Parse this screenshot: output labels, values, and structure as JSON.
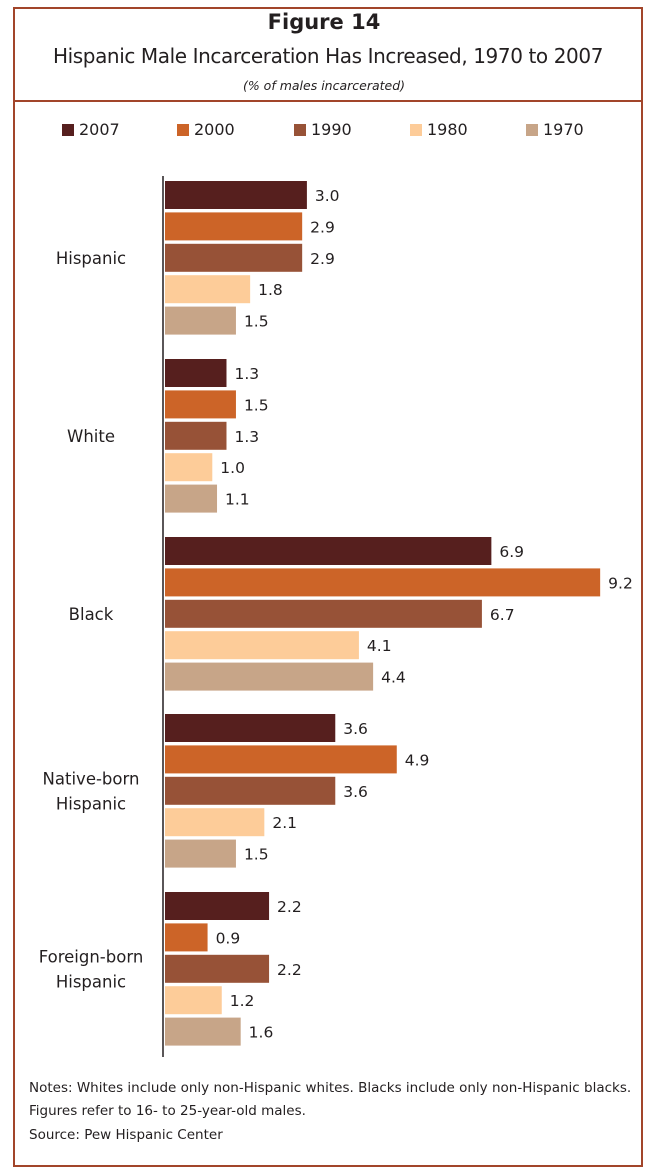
{
  "header": {
    "figure_label": "Figure 14",
    "title": "Hispanic Male Incarceration Has Increased, 1970 to 2007",
    "subtitle": "(% of males incarcerated)"
  },
  "colors": {
    "border": "#a2452a",
    "2007": "#561f1e",
    "2000": "#cc6428",
    "1990": "#975237",
    "1980": "#fdcc99",
    "1970": "#c7a588"
  },
  "chart_data": {
    "type": "bar",
    "orientation": "horizontal",
    "title": "Hispanic Male Incarceration Has Increased, 1970 to 2007",
    "subtitle": "(% of males incarcerated)",
    "categories": [
      [
        "Hispanic"
      ],
      [
        "White"
      ],
      [
        "Black"
      ],
      [
        "Native-born",
        "Hispanic"
      ],
      [
        "Foreign-born",
        "Hispanic"
      ]
    ],
    "series": [
      {
        "name": "2007",
        "color": "#561f1e",
        "values": [
          3.0,
          1.3,
          6.9,
          3.6,
          2.2
        ]
      },
      {
        "name": "2000",
        "color": "#cc6428",
        "values": [
          2.9,
          1.5,
          9.2,
          4.9,
          0.9
        ]
      },
      {
        "name": "1990",
        "color": "#975237",
        "values": [
          2.9,
          1.3,
          6.7,
          3.6,
          2.2
        ]
      },
      {
        "name": "1980",
        "color": "#fdcc99",
        "values": [
          1.8,
          1.0,
          4.1,
          2.1,
          1.2
        ]
      },
      {
        "name": "1970",
        "color": "#c7a588",
        "values": [
          1.5,
          1.1,
          4.4,
          1.5,
          1.6
        ]
      }
    ],
    "xlim": [
      0,
      9.2
    ],
    "grid": false,
    "legend_position": "top"
  },
  "footer": {
    "notes": "Notes: Whites include only non-Hispanic whites. Blacks include only non-Hispanic blacks. Figures refer to 16- to 25-year-old males.",
    "source": "Source: Pew Hispanic Center"
  }
}
